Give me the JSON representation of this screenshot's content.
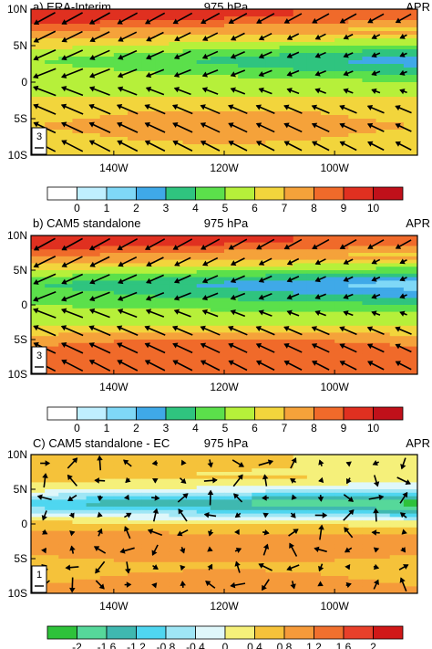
{
  "figure": {
    "panels": [
      {
        "title": "a) ERA-Interim",
        "level": "975 hPa",
        "month": "APR",
        "ref_vector": "3",
        "colorbar": {
          "labels": [
            "0",
            "1",
            "2",
            "3",
            "4",
            "5",
            "6",
            "7",
            "8",
            "9",
            "10"
          ],
          "colors": [
            "#ffffff",
            "#bfefff",
            "#7fd8f7",
            "#3fa9e8",
            "#2fc47f",
            "#5be04b",
            "#b6f03a",
            "#f2d53c",
            "#f5a23a",
            "#f06a2a",
            "#e03020",
            "#c0101a"
          ]
        }
      },
      {
        "title": "b) CAM5 standalone",
        "level": "975 hPa",
        "month": "APR",
        "ref_vector": "3",
        "colorbar": {
          "labels": [
            "0",
            "1",
            "2",
            "3",
            "4",
            "5",
            "6",
            "7",
            "8",
            "9",
            "10"
          ],
          "colors": [
            "#ffffff",
            "#bfefff",
            "#7fd8f7",
            "#3fa9e8",
            "#2fc47f",
            "#5be04b",
            "#b6f03a",
            "#f2d53c",
            "#f5a23a",
            "#f06a2a",
            "#e03020",
            "#c0101a"
          ]
        }
      },
      {
        "title": "C) CAM5 standalone - EC",
        "level": "975 hPa",
        "month": "APR",
        "ref_vector": "1",
        "colorbar": {
          "labels": [
            "-2",
            "-1.6",
            "-1.2",
            "-0.8",
            "-0.4",
            "0",
            "0.4",
            "0.8",
            "1.2",
            "1.6",
            "2"
          ],
          "colors": [
            "#2ec23a",
            "#56d89a",
            "#3fb8b0",
            "#4fd6f0",
            "#9fe6f5",
            "#dff7fa",
            "#f5f07a",
            "#f5c23a",
            "#f59a3a",
            "#f0702e",
            "#e8402a",
            "#d01818"
          ]
        }
      }
    ],
    "axes": {
      "y_ticks": [
        "10N",
        "5N",
        "0",
        "5S",
        "10S"
      ],
      "x_ticks": [
        "140W",
        "120W",
        "100W"
      ]
    }
  },
  "chart_data": [
    {
      "type": "heatmap",
      "title": "a) ERA-Interim",
      "subtitle": "975 hPa",
      "annotation": "APR",
      "x_range": [
        -155,
        -85
      ],
      "y_range": [
        -10,
        10
      ],
      "x_ticks": [
        "140W",
        "120W",
        "100W"
      ],
      "y_ticks": [
        "10N",
        "5N",
        "0",
        "5S",
        "10S"
      ],
      "colorbar_levels": [
        0,
        1,
        2,
        3,
        4,
        5,
        6,
        7,
        8,
        9,
        10
      ],
      "field_bands": [
        {
          "lat": 9,
          "speed": 10
        },
        {
          "lat": 6,
          "speed": 7
        },
        {
          "lat": 3,
          "speed": 5
        },
        {
          "lat": 0,
          "speed": 6
        },
        {
          "lat": -3,
          "speed": 6
        },
        {
          "lat": -6,
          "speed": 7
        },
        {
          "lat": -9,
          "speed": 6
        }
      ]
    },
    {
      "type": "heatmap",
      "title": "b) CAM5 standalone",
      "subtitle": "975 hPa",
      "annotation": "APR",
      "x_range": [
        -155,
        -85
      ],
      "y_range": [
        -10,
        10
      ],
      "x_ticks": [
        "140W",
        "120W",
        "100W"
      ],
      "y_ticks": [
        "10N",
        "5N",
        "0",
        "5S",
        "10S"
      ],
      "colorbar_levels": [
        0,
        1,
        2,
        3,
        4,
        5,
        6,
        7,
        8,
        9,
        10
      ],
      "field_bands": [
        {
          "lat": 9,
          "speed": 10
        },
        {
          "lat": 6,
          "speed": 7
        },
        {
          "lat": 3,
          "speed": 4
        },
        {
          "lat": 0,
          "speed": 5
        },
        {
          "lat": -3,
          "speed": 6
        },
        {
          "lat": -6,
          "speed": 8
        },
        {
          "lat": -9,
          "speed": 8
        }
      ]
    },
    {
      "type": "heatmap",
      "title": "C) CAM5 standalone - EC",
      "subtitle": "975 hPa",
      "annotation": "APR",
      "x_range": [
        -155,
        -85
      ],
      "y_range": [
        -10,
        10
      ],
      "x_ticks": [
        "140W",
        "120W",
        "100W"
      ],
      "y_ticks": [
        "10N",
        "5N",
        "0",
        "5S",
        "10S"
      ],
      "colorbar_levels": [
        -2,
        -1.6,
        -1.2,
        -0.8,
        -0.4,
        0,
        0.4,
        0.8,
        1.2,
        1.6,
        2
      ],
      "field_bands": [
        {
          "lat": 8,
          "speed": 0.8
        },
        {
          "lat": 5,
          "speed": 0.2
        },
        {
          "lat": 3,
          "speed": -1.2
        },
        {
          "lat": 0,
          "speed": 0.6
        },
        {
          "lat": -3,
          "speed": 1.2
        },
        {
          "lat": -6,
          "speed": 0.4
        },
        {
          "lat": -9,
          "speed": 0.8
        }
      ]
    }
  ]
}
